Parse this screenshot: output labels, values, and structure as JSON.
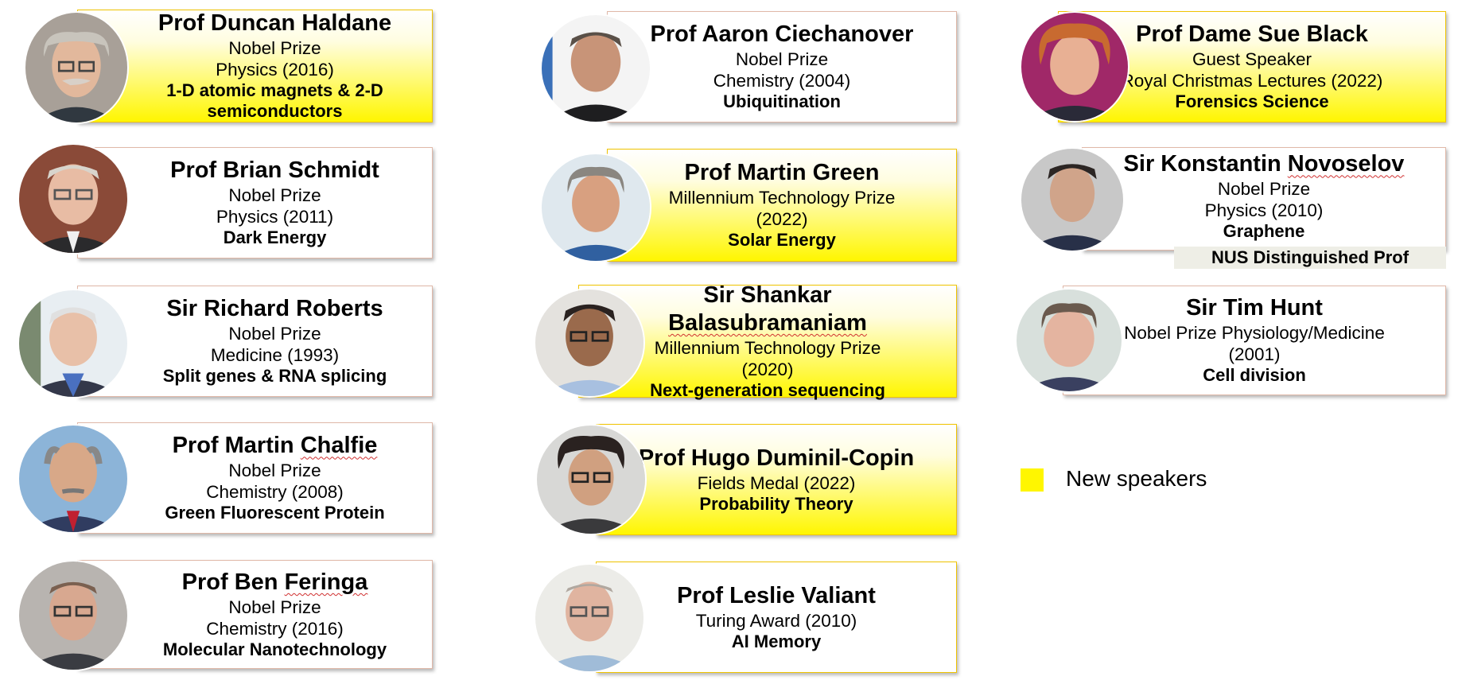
{
  "speakers": [
    {
      "name": "Prof Duncan Haldane",
      "lines": [
        "Nobel Prize",
        "Physics (2016)"
      ],
      "topic": "1-D atomic magnets & 2-D semiconductors",
      "new": true
    },
    {
      "name": "Prof Brian Schmidt",
      "lines": [
        "Nobel Prize",
        "Physics (2011)"
      ],
      "topic": "Dark Energy",
      "new": false
    },
    {
      "name": "Sir Richard Roberts",
      "lines": [
        "Nobel Prize",
        "Medicine (1993)"
      ],
      "topic": "Split genes & RNA splicing",
      "new": false
    },
    {
      "name_parts": [
        "Prof Martin ",
        "Chalfie"
      ],
      "lines": [
        "Nobel Prize",
        "Chemistry (2008)"
      ],
      "topic": "Green Fluorescent Protein",
      "new": false
    },
    {
      "name_parts": [
        "Prof Ben ",
        "Feringa"
      ],
      "lines": [
        "Nobel Prize",
        "Chemistry (2016)"
      ],
      "topic": "Molecular Nanotechnology",
      "new": false
    },
    {
      "name": "Prof Aaron Ciechanover",
      "lines": [
        "Nobel Prize",
        "Chemistry (2004)"
      ],
      "topic": "Ubiquitination",
      "new": false
    },
    {
      "name": "Prof Martin Green",
      "lines": [
        "Millennium Technology Prize",
        "(2022)"
      ],
      "topic": "Solar Energy",
      "new": true
    },
    {
      "name_line1": "Sir Shankar",
      "name_line2": "Balasubramaniam",
      "lines": [
        "Millennium Technology Prize",
        "(2020)"
      ],
      "topic": "Next-generation sequencing",
      "new": true
    },
    {
      "name": "Prof Hugo Duminil-Copin",
      "lines": [
        "Fields Medal (2022)"
      ],
      "topic": "Probability Theory",
      "new": true
    },
    {
      "name": "Prof Leslie Valiant",
      "lines": [
        "Turing Award (2010)"
      ],
      "topic": "AI Memory",
      "new": false
    },
    {
      "name": "Prof Dame Sue Black",
      "lines": [
        "Guest Speaker",
        "Royal Christmas Lectures (2022)"
      ],
      "topic": "Forensics Science",
      "new": true
    },
    {
      "name_parts": [
        "Sir Konstantin ",
        "Novoselov"
      ],
      "lines": [
        "Nobel Prize",
        "Physics (2010)"
      ],
      "topic": "Graphene",
      "extra": "NUS Distinguished Prof",
      "new": false
    },
    {
      "name": "Sir Tim Hunt",
      "lines": [
        "Nobel Prize Physiology/Medicine",
        "(2001)"
      ],
      "topic": "Cell division",
      "new": false
    }
  ],
  "legend": {
    "label": "New speakers",
    "color": "#fff600"
  },
  "colors": {
    "new_speaker_fill": "#fff600",
    "card_border": "#e0b8a8",
    "new_card_border": "#f0c400"
  },
  "icons": [
    "portrait-photo"
  ]
}
